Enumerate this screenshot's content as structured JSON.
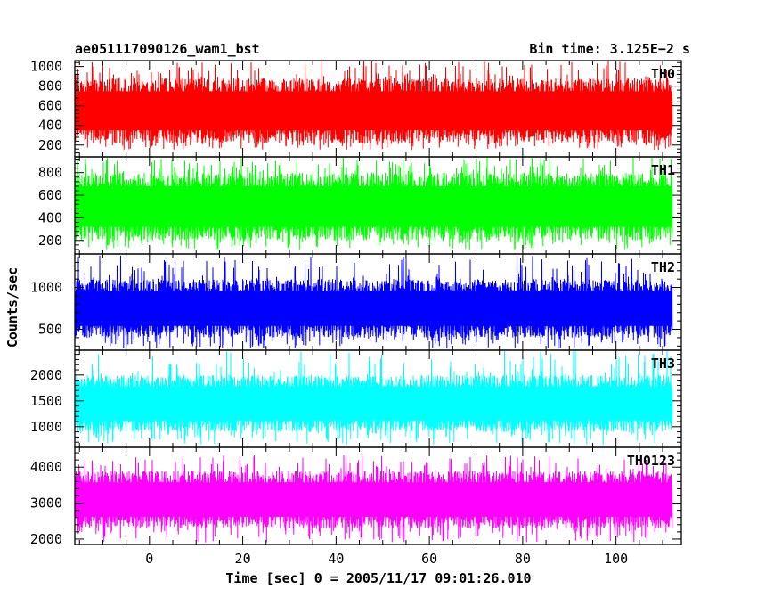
{
  "chart_data": {
    "type": "line",
    "title_left": "ae051117090126_wam1_bst",
    "title_right": "Bin time: 3.125E−2 s",
    "ylabel": "Counts/sec",
    "xlabel": "Time [sec] 0 = 2005/11/17 09:01:26.010",
    "xlim": [
      -16,
      114
    ],
    "data_x_range": [
      -16,
      112
    ],
    "x_ticks": [
      0,
      20,
      40,
      60,
      80,
      100
    ],
    "x_tick_labels": [
      "0",
      "20",
      "40",
      "60",
      "80",
      "100"
    ],
    "panels": [
      {
        "name": "TH0",
        "color": "#ff0000",
        "ylim": [
          80,
          1060
        ],
        "y_ticks": [
          200,
          400,
          600,
          800,
          1000
        ],
        "y_tick_labels": [
          "200",
          "400",
          "600",
          "800",
          "1000"
        ],
        "band": [
          220,
          880
        ],
        "spike": [
          150,
          1060
        ]
      },
      {
        "name": "TH1",
        "color": "#00ff00",
        "ylim": [
          80,
          940
        ],
        "y_ticks": [
          200,
          400,
          600,
          800
        ],
        "y_tick_labels": [
          "200",
          "400",
          "600",
          "800"
        ],
        "band": [
          200,
          800
        ],
        "spike": [
          120,
          940
        ]
      },
      {
        "name": "TH2",
        "color": "#0000ff",
        "ylim": [
          250,
          1400
        ],
        "y_ticks": [
          500,
          1000
        ],
        "y_tick_labels": [
          "500",
          "1000"
        ],
        "band": [
          400,
          1100
        ],
        "spike": [
          270,
          1380
        ]
      },
      {
        "name": "TH3",
        "color": "#00ffff",
        "ylim": [
          600,
          2480
        ],
        "y_ticks": [
          1000,
          1500,
          2000
        ],
        "y_tick_labels": [
          "1000",
          "1500",
          "2000"
        ],
        "band": [
          900,
          2000
        ],
        "spike": [
          650,
          2480
        ]
      },
      {
        "name": "TH0123",
        "color": "#ff00ff",
        "ylim": [
          1850,
          4550
        ],
        "y_ticks": [
          2000,
          3000,
          4000
        ],
        "y_tick_labels": [
          "2000",
          "3000",
          "4000"
        ],
        "band": [
          2300,
          3900
        ],
        "spike": [
          1900,
          4350
        ]
      }
    ]
  }
}
